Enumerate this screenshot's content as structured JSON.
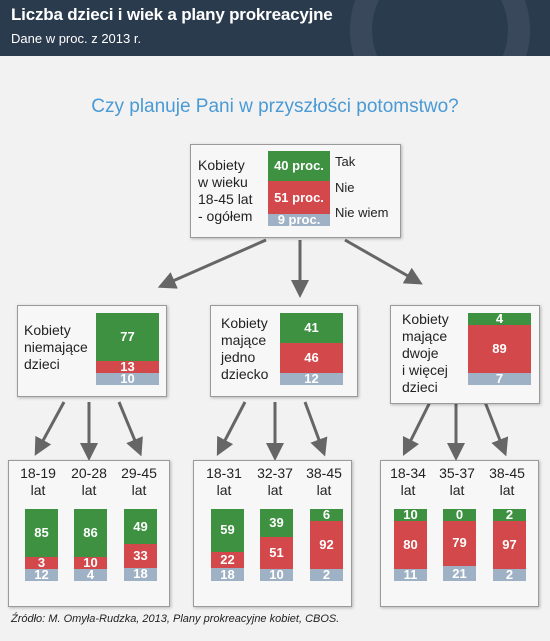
{
  "header": {
    "title": "Liczba dzieci i wiek a plany prokreacyjne",
    "subtitle": "Dane w proc. z 2013 r."
  },
  "question": "Czy planuje Pani w przyszłości potomstwo?",
  "legend": {
    "tak": "Tak",
    "nie": "Nie",
    "nie_wiem": "Nie wiem"
  },
  "colors": {
    "tak": "#3e9140",
    "nie": "#d3484b",
    "nie_wiem": "#9fb1c4",
    "title_bg": "#2b3b4e",
    "question": "#4a9ad6"
  },
  "top": {
    "label": "Kobiety\nw wieku\n18-45 lat\n- ogółem",
    "values": [
      40,
      51,
      9
    ],
    "texts": [
      "40 proc.",
      "51 proc.",
      "9 proc."
    ]
  },
  "groups": [
    {
      "label": "Kobiety\nniemające\ndzieci",
      "values": [
        77,
        13,
        10
      ],
      "texts": [
        "77",
        "13",
        "10"
      ],
      "subgroups": [
        {
          "label": "18-19\nlat",
          "values": [
            85,
            3,
            12
          ],
          "texts": [
            "85",
            "3",
            "12"
          ]
        },
        {
          "label": "20-28\nlat",
          "values": [
            86,
            10,
            4
          ],
          "texts": [
            "86",
            "10",
            "4"
          ]
        },
        {
          "label": "29-45\nlat",
          "values": [
            49,
            33,
            18
          ],
          "texts": [
            "49",
            "33",
            "18"
          ]
        }
      ]
    },
    {
      "label": "Kobiety\nmające\njedno\ndziecko",
      "values": [
        41,
        46,
        12
      ],
      "texts": [
        "41",
        "46",
        "12"
      ],
      "subgroups": [
        {
          "label": "18-31\nlat",
          "values": [
            59,
            22,
            18
          ],
          "texts": [
            "59",
            "22",
            "18"
          ]
        },
        {
          "label": "32-37\nlat",
          "values": [
            39,
            51,
            10
          ],
          "texts": [
            "39",
            "51",
            "10"
          ]
        },
        {
          "label": "38-45\nlat",
          "values": [
            6,
            92,
            2
          ],
          "texts": [
            "6",
            "92",
            "2"
          ]
        }
      ]
    },
    {
      "label": "Kobiety\nmające\ndwoje\ni więcej\ndzieci",
      "values": [
        4,
        89,
        7
      ],
      "texts": [
        "4",
        "89",
        "7"
      ],
      "subgroups": [
        {
          "label": "18-34\nlat",
          "values": [
            10,
            80,
            11
          ],
          "texts": [
            "10",
            "80",
            "11"
          ]
        },
        {
          "label": "35-37\nlat",
          "values": [
            0,
            79,
            21
          ],
          "texts": [
            "0",
            "79",
            "21"
          ]
        },
        {
          "label": "38-45\nlat",
          "values": [
            2,
            97,
            2
          ],
          "texts": [
            "2",
            "97",
            "2"
          ]
        }
      ]
    }
  ],
  "source": "Źródło: M. Omyła-Rudzka, 2013, Plany prokreacyjne kobiet, CBOS."
}
